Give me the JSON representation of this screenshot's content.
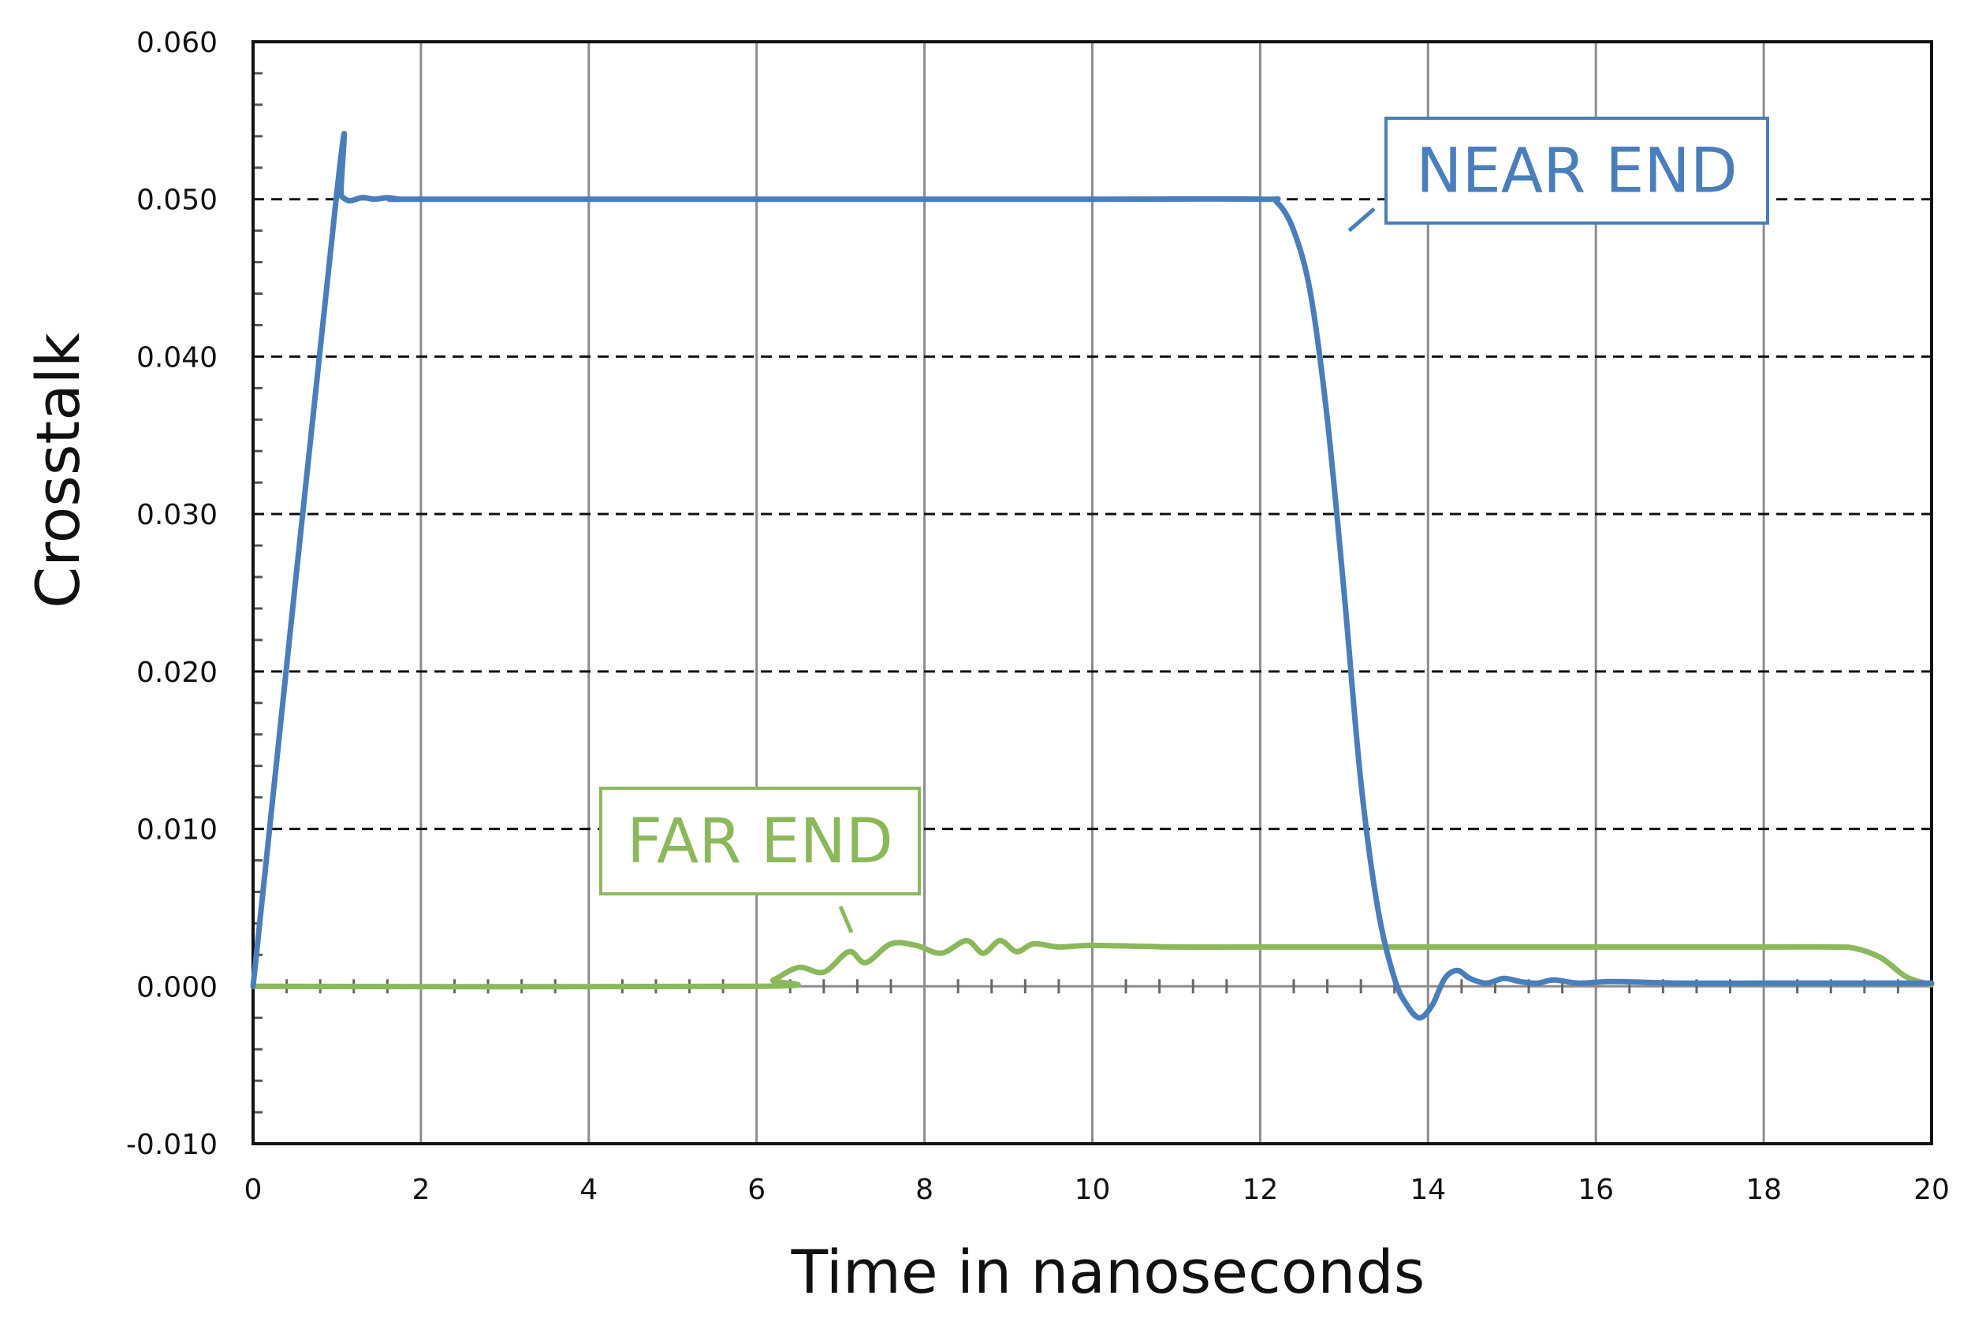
{
  "chart_data": {
    "type": "line",
    "title": "",
    "xlabel": "Time in nanoseconds",
    "ylabel": "Crosstalk",
    "xlim": [
      0,
      20
    ],
    "ylim": [
      -0.01,
      0.06
    ],
    "x_ticks": [
      "0",
      "2",
      "4",
      "6",
      "8",
      "10",
      "12",
      "14",
      "16",
      "18",
      "20"
    ],
    "y_ticks": [
      "-0.010",
      "0.000",
      "0.010",
      "0.020",
      "0.030",
      "0.040",
      "0.050",
      "0.060"
    ],
    "x_gridlines": "solid gray at every 2 ns",
    "y_gridlines": "dashed black at every 0.010",
    "legend": "none (inline callout labels)",
    "series": [
      {
        "name": "NEAR END",
        "color": "#4a7ebb",
        "points": [
          [
            0,
            0
          ],
          [
            1.0,
            0.0505
          ],
          [
            1.05,
            0.0502
          ],
          [
            1.15,
            0.0499
          ],
          [
            1.3,
            0.0501
          ],
          [
            1.45,
            0.05
          ],
          [
            1.6,
            0.0501
          ],
          [
            1.75,
            0.05
          ],
          [
            2,
            0.05
          ],
          [
            6,
            0.05
          ],
          [
            10,
            0.05
          ],
          [
            12,
            0.05
          ],
          [
            12.2,
            0.0498
          ],
          [
            12.4,
            0.048
          ],
          [
            12.6,
            0.044
          ],
          [
            12.8,
            0.036
          ],
          [
            13.0,
            0.025
          ],
          [
            13.2,
            0.013
          ],
          [
            13.4,
            0.005
          ],
          [
            13.6,
            0.0005
          ],
          [
            13.75,
            -0.0012
          ],
          [
            13.9,
            -0.002
          ],
          [
            14.05,
            -0.0012
          ],
          [
            14.2,
            0.0005
          ],
          [
            14.35,
            0.001
          ],
          [
            14.5,
            0.0005
          ],
          [
            14.7,
            0.0002
          ],
          [
            14.9,
            0.0005
          ],
          [
            15.1,
            0.0003
          ],
          [
            15.3,
            0.0002
          ],
          [
            15.5,
            0.0004
          ],
          [
            15.8,
            0.0002
          ],
          [
            16.2,
            0.0003
          ],
          [
            17,
            0.0002
          ],
          [
            18,
            0.0002
          ],
          [
            19,
            0.0002
          ],
          [
            20,
            0.0002
          ]
        ]
      },
      {
        "name": "FAR END",
        "color": "#8cb85c",
        "points": [
          [
            0,
            0
          ],
          [
            6.0,
            0
          ],
          [
            6.2,
            0.0004
          ],
          [
            6.5,
            0.0012
          ],
          [
            6.8,
            0.0009
          ],
          [
            7.1,
            0.0022
          ],
          [
            7.3,
            0.0015
          ],
          [
            7.6,
            0.0027
          ],
          [
            7.9,
            0.0026
          ],
          [
            8.2,
            0.0021
          ],
          [
            8.5,
            0.0029
          ],
          [
            8.7,
            0.0021
          ],
          [
            8.9,
            0.0029
          ],
          [
            9.1,
            0.0022
          ],
          [
            9.3,
            0.0027
          ],
          [
            9.6,
            0.0025
          ],
          [
            10,
            0.0026
          ],
          [
            11,
            0.0025
          ],
          [
            12,
            0.0025
          ],
          [
            14,
            0.0025
          ],
          [
            16,
            0.0025
          ],
          [
            18,
            0.0025
          ],
          [
            18.8,
            0.0025
          ],
          [
            19.1,
            0.0024
          ],
          [
            19.4,
            0.0018
          ],
          [
            19.7,
            0.0006
          ],
          [
            20,
            0.0001
          ]
        ]
      }
    ],
    "annotations": [
      {
        "text": "NEAR END",
        "series": "NEAR END"
      },
      {
        "text": "FAR END",
        "series": "FAR END"
      }
    ]
  }
}
